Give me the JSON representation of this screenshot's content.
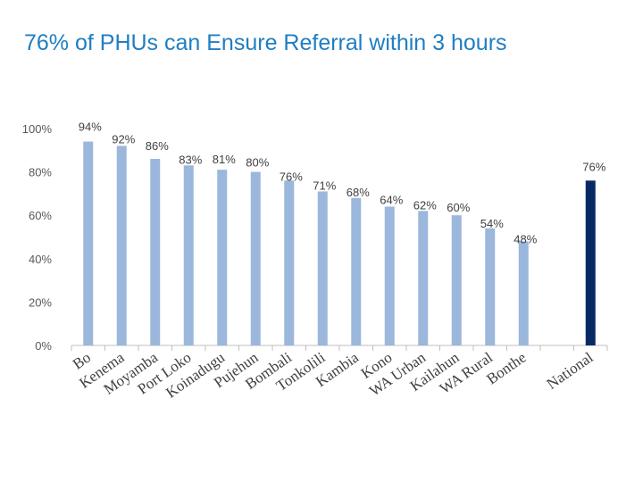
{
  "title": "76% of PHUs can Ensure Referral within 3 hours",
  "chart_data": {
    "type": "bar",
    "title": "76% of PHUs can Ensure Referral within 3 hours",
    "xlabel": "",
    "ylabel": "",
    "ylim": [
      0,
      100
    ],
    "yticks": [
      0,
      20,
      40,
      60,
      80,
      100
    ],
    "ytick_labels": [
      "0%",
      "20%",
      "40%",
      "60%",
      "80%",
      "100%"
    ],
    "grid": false,
    "categories": [
      "Bo",
      "Kenema",
      "Moyamba",
      "Port Loko",
      "Koinadugu",
      "Pujehun",
      "Bombali",
      "Tonkolili",
      "Kambia",
      "Kono",
      "WA Urban",
      "Kailahun",
      "WA Rural",
      "Bonthe",
      "",
      "National"
    ],
    "values": [
      94,
      92,
      86,
      83,
      81,
      80,
      76,
      71,
      68,
      64,
      62,
      60,
      54,
      48,
      null,
      76
    ],
    "value_labels": [
      "94%",
      "92%",
      "86%",
      "83%",
      "81%",
      "80%",
      "76%",
      "71%",
      "68%",
      "64%",
      "62%",
      "60%",
      "54%",
      "48%",
      "",
      "76%"
    ],
    "colors": {
      "district": "#9BB7DB",
      "national": "#082A64",
      "title": "#1F7EC2",
      "axis": "#595959"
    }
  }
}
